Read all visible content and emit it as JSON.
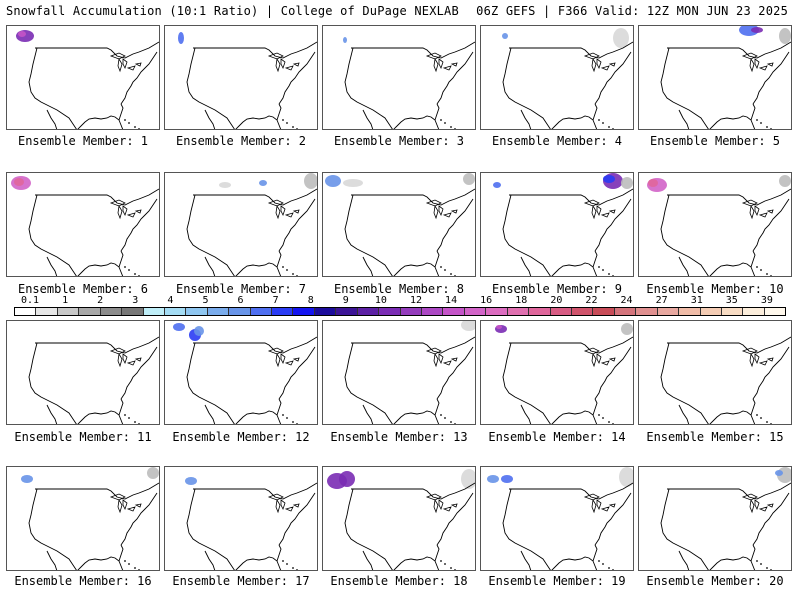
{
  "header": {
    "left_title": "Snowfall Accumulation (10:1 Ratio) | College of DuPage NEXLAB",
    "right_title": "06Z GEFS | F366 Valid: 12Z MON JUN 23 2025"
  },
  "colorbar": {
    "labels": [
      "0.1",
      "1",
      "2",
      "3",
      "4",
      "5",
      "6",
      "7",
      "8",
      "9",
      "10",
      "12",
      "14",
      "16",
      "18",
      "20",
      "22",
      "24",
      "27",
      "31",
      "35",
      "39"
    ],
    "colors": [
      "#ffffff",
      "#e6e6e6",
      "#c8c8c8",
      "#a8a8a8",
      "#8c8c8c",
      "#787878",
      "#bfeef8",
      "#a4dcf4",
      "#8fc6f0",
      "#7aacec",
      "#6894e8",
      "#4f6ff0",
      "#2a3cf4",
      "#1414f0",
      "#1c0c9c",
      "#3c1496",
      "#5c20a4",
      "#7a2cb4",
      "#943cbc",
      "#ac48c4",
      "#c454c8",
      "#d264c8",
      "#dc6cc0",
      "#e070b0",
      "#e0669c",
      "#d85c84",
      "#d0546c",
      "#c84c58",
      "#d4747c",
      "#e09090",
      "#e8a8a0",
      "#f0bca8",
      "#f4ccb4",
      "#f8dcc4",
      "#fceedc",
      "#fff8ec"
    ]
  },
  "panels": [
    {
      "label": "Ensemble Member: 1"
    },
    {
      "label": "Ensemble Member: 2"
    },
    {
      "label": "Ensemble Member: 3"
    },
    {
      "label": "Ensemble Member: 4"
    },
    {
      "label": "Ensemble Member: 5"
    },
    {
      "label": "Ensemble Member: 6"
    },
    {
      "label": "Ensemble Member: 7"
    },
    {
      "label": "Ensemble Member: 8"
    },
    {
      "label": "Ensemble Member: 9"
    },
    {
      "label": "Ensemble Member: 10"
    },
    {
      "label": "Ensemble Member: 11"
    },
    {
      "label": "Ensemble Member: 12"
    },
    {
      "label": "Ensemble Member: 13"
    },
    {
      "label": "Ensemble Member: 14"
    },
    {
      "label": "Ensemble Member: 15"
    },
    {
      "label": "Ensemble Member: 16"
    },
    {
      "label": "Ensemble Member: 17"
    },
    {
      "label": "Ensemble Member: 18"
    },
    {
      "label": "Ensemble Member: 19"
    },
    {
      "label": "Ensemble Member: 20"
    }
  ]
}
